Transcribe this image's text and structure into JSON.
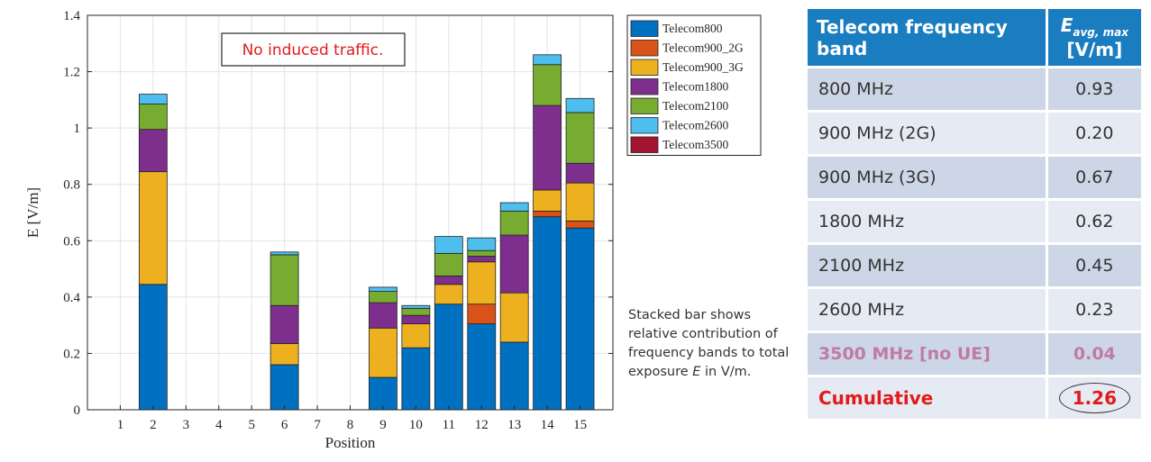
{
  "chart_data": {
    "type": "bar",
    "stacked": true,
    "xlabel": "Position",
    "ylabel": "E [V/m]",
    "ylim": [
      0,
      1.4
    ],
    "yticks": [
      "0",
      "0.2",
      "0.4",
      "0.6",
      "0.8",
      "1",
      "1.2",
      "1.4"
    ],
    "categories": [
      "1",
      "2",
      "3",
      "4",
      "5",
      "6",
      "7",
      "8",
      "9",
      "10",
      "11",
      "12",
      "13",
      "14",
      "15"
    ],
    "grid": true,
    "legend_position": "top-right",
    "annotation": "No induced traffic.",
    "series": [
      {
        "name": "Telecom800",
        "color": "#0070c0",
        "values": [
          0,
          0.445,
          0,
          0,
          0,
          0.16,
          0,
          0,
          0.115,
          0.22,
          0.375,
          0.305,
          0.24,
          0.685,
          0.645
        ]
      },
      {
        "name": "Telecom900_2G",
        "color": "#d95319",
        "values": [
          0,
          0,
          0,
          0,
          0,
          0,
          0,
          0,
          0,
          0,
          0,
          0.07,
          0,
          0.02,
          0.025
        ]
      },
      {
        "name": "Telecom900_3G",
        "color": "#edb120",
        "values": [
          0,
          0.4,
          0,
          0,
          0,
          0.075,
          0,
          0,
          0.175,
          0.085,
          0.07,
          0.15,
          0.175,
          0.075,
          0.135
        ]
      },
      {
        "name": "Telecom1800",
        "color": "#7e2f8e",
        "values": [
          0,
          0.15,
          0,
          0,
          0,
          0.135,
          0,
          0,
          0.09,
          0.03,
          0.03,
          0.02,
          0.205,
          0.3,
          0.07
        ]
      },
      {
        "name": "Telecom2100",
        "color": "#77ac30",
        "values": [
          0,
          0.09,
          0,
          0,
          0,
          0.18,
          0,
          0,
          0.04,
          0.025,
          0.08,
          0.02,
          0.085,
          0.145,
          0.18
        ]
      },
      {
        "name": "Telecom2600",
        "color": "#4dbeee",
        "values": [
          0,
          0.035,
          0,
          0,
          0,
          0.01,
          0,
          0,
          0.015,
          0.01,
          0.06,
          0.045,
          0.03,
          0.035,
          0.05
        ]
      },
      {
        "name": "Telecom3500",
        "color": "#a2142f",
        "values": [
          0,
          0,
          0,
          0,
          0,
          0,
          0,
          0,
          0,
          0,
          0,
          0,
          0,
          0,
          0
        ]
      }
    ]
  },
  "note": {
    "before": "Stacked bar shows relative contribution of frequency bands to total exposure ",
    "emph": "E",
    "after": " in V/m."
  },
  "table": {
    "header_band": "Telecom frequency band",
    "header_value_main": "E",
    "header_value_sub": "avg, max",
    "header_value_unit": "[V/m]",
    "rows": [
      {
        "band": "800 MHz",
        "value": "0.93",
        "style": "odd"
      },
      {
        "band": "900 MHz (2G)",
        "value": "0.20",
        "style": "even"
      },
      {
        "band": "900 MHz (3G)",
        "value": "0.67",
        "style": "odd"
      },
      {
        "band": "1800 MHz",
        "value": "0.62",
        "style": "even"
      },
      {
        "band": "2100 MHz",
        "value": "0.45",
        "style": "odd"
      },
      {
        "band": "2600 MHz",
        "value": "0.23",
        "style": "even"
      },
      {
        "band": "3500 MHz [no UE]",
        "value": "0.04",
        "style": "odd muted"
      }
    ],
    "total_label": "Cumulative",
    "total_value": "1.26"
  }
}
